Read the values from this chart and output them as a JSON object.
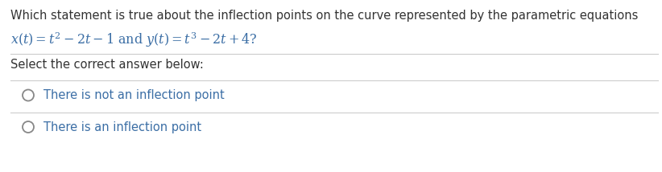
{
  "background_color": "#ffffff",
  "text_color_dark": "#333333",
  "text_color_blue": "#3B6EA5",
  "text_color_orange": "#C0602A",
  "line_color": "#cccccc",
  "question_line1": "Which statement is true about the inflection points on the curve represented by the parametric equations",
  "equation_line": "$x(t) = t^2 - 2t - 1$ and $y(t) = t^3 - 2t + 4?$",
  "option1_text": "There is not an inflection point",
  "option2_text": "There is an inflection point",
  "select_text": "Select the correct answer below:",
  "fig_width": 8.22,
  "fig_height": 2.14,
  "dpi": 100
}
